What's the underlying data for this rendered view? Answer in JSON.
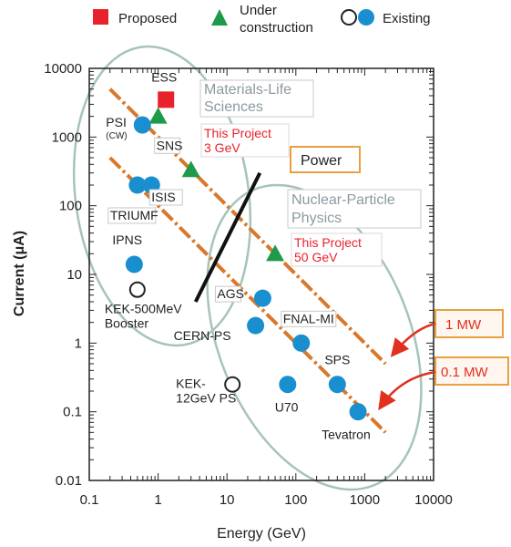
{
  "chart_data": {
    "type": "scatter",
    "x_scale": "log",
    "y_scale": "log",
    "xlabel": "Energy (GeV)",
    "ylabel": "Current (μA)",
    "xlim": [
      0.1,
      10000
    ],
    "ylim": [
      0.01,
      10000
    ],
    "x_ticks": [
      "0.1",
      "1",
      "10",
      "100",
      "1000",
      "10000"
    ],
    "y_ticks": [
      "0.01",
      "0.1",
      "1",
      "10",
      "100",
      "1000",
      "10000"
    ],
    "legend": {
      "placement": "top",
      "entries": [
        {
          "label": "Proposed",
          "marker": "square",
          "color": "#e8222a"
        },
        {
          "label_lines": [
            "Under",
            "construction"
          ],
          "marker": "triangle",
          "color": "#1f9a4a"
        },
        {
          "label": "Existing",
          "marker": "circle-open-and-filled",
          "color": "#1a8fd0"
        }
      ]
    },
    "series": [
      {
        "category": "Proposed",
        "color": "#e8222a",
        "marker": "square",
        "points": [
          {
            "label": "ESS",
            "x": 1.3,
            "y": 3500
          }
        ]
      },
      {
        "category": "Under construction",
        "color": "#1f9a4a",
        "marker": "triangle",
        "points": [
          {
            "label": "",
            "x": 1.0,
            "y": 2000
          },
          {
            "label": "SNS",
            "x": 3.0,
            "y": 333
          },
          {
            "label": "",
            "x": 50,
            "y": 20
          }
        ]
      },
      {
        "category": "Existing",
        "color": "#1a8fd0",
        "marker": "circle",
        "points": [
          {
            "label": "PSI",
            "sublabel": "(CW)",
            "x": 0.59,
            "y": 1500
          },
          {
            "label": "TRIUMF",
            "x": 0.5,
            "y": 200
          },
          {
            "label": "ISIS",
            "x": 0.8,
            "y": 200
          },
          {
            "label": "IPNS",
            "x": 0.45,
            "y": 14
          },
          {
            "label": "AGS",
            "x": 33,
            "y": 4.5
          },
          {
            "label": "CERN-PS",
            "x": 26,
            "y": 1.8
          },
          {
            "label": "FNAL-MI",
            "x": 120,
            "y": 1.0
          },
          {
            "label": "U70",
            "x": 76,
            "y": 0.25
          },
          {
            "label": "SPS",
            "x": 400,
            "y": 0.25
          },
          {
            "label": "Tevatron",
            "x": 800,
            "y": 0.1
          }
        ]
      },
      {
        "category": "Existing (open)",
        "color": "#222222",
        "marker": "circle-open",
        "points": [
          {
            "label_lines": [
              "KEK-500MeV",
              "Booster"
            ],
            "x": 0.5,
            "y": 6
          },
          {
            "label_lines": [
              "KEK-",
              "12GeV PS"
            ],
            "x": 12,
            "y": 0.25
          }
        ]
      }
    ],
    "power_lines": [
      {
        "label": "1 MW",
        "color": "#d9782a",
        "from": {
          "x": 0.2,
          "y": 5000
        },
        "to": {
          "x": 2000,
          "y": 0.5
        }
      },
      {
        "label": "0.1 MW",
        "color": "#d9782a",
        "from": {
          "x": 0.2,
          "y": 500
        },
        "to": {
          "x": 2000,
          "y": 0.05
        }
      }
    ],
    "power_arrow": {
      "label": "Power",
      "from": {
        "x": 3.5,
        "y": 4
      },
      "to": {
        "x": 30,
        "y": 300
      }
    },
    "regions": [
      {
        "label_lines": [
          "Materials-Life",
          "Sciences"
        ]
      },
      {
        "label_lines": [
          "Nuclear-Particle",
          "Physics"
        ]
      }
    ],
    "project_labels": [
      {
        "lines": [
          "This Project",
          "3 GeV"
        ],
        "color": "#e8222a"
      },
      {
        "lines": [
          "This Project",
          "50 GeV"
        ],
        "color": "#e8222a"
      }
    ]
  }
}
